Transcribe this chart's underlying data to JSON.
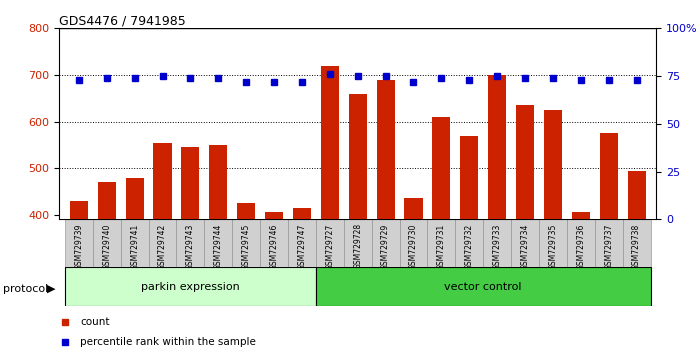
{
  "title": "GDS4476 / 7941985",
  "samples": [
    "GSM729739",
    "GSM729740",
    "GSM729741",
    "GSM729742",
    "GSM729743",
    "GSM729744",
    "GSM729745",
    "GSM729746",
    "GSM729747",
    "GSM729727",
    "GSM729728",
    "GSM729729",
    "GSM729730",
    "GSM729731",
    "GSM729732",
    "GSM729733",
    "GSM729734",
    "GSM729735",
    "GSM729736",
    "GSM729737",
    "GSM729738"
  ],
  "counts": [
    430,
    470,
    480,
    555,
    545,
    550,
    425,
    405,
    415,
    720,
    660,
    690,
    435,
    610,
    570,
    700,
    635,
    625,
    405,
    575,
    495
  ],
  "percentile_ranks": [
    73,
    74,
    74,
    75,
    74,
    74,
    72,
    72,
    72,
    76,
    75,
    75,
    72,
    74,
    73,
    75,
    74,
    74,
    73,
    73,
    73
  ],
  "bar_color": "#cc2200",
  "dot_color": "#0000cc",
  "ylim_left": [
    390,
    800
  ],
  "ylim_right": [
    0,
    100
  ],
  "yticks_left": [
    400,
    500,
    600,
    700,
    800
  ],
  "yticks_right": [
    0,
    25,
    50,
    75,
    100
  ],
  "parkin_count": 9,
  "vector_count": 12,
  "parkin_label": "parkin expression",
  "vector_label": "vector control",
  "protocol_label": "protocol",
  "legend_count_label": "count",
  "legend_pct_label": "percentile rank within the sample",
  "bg_color": "#ffffff",
  "tick_label_color_left": "#cc2200",
  "tick_label_color_right": "#0000cc",
  "parkin_bg": "#ccffcc",
  "vector_bg": "#44cc44",
  "xticklabel_bg": "#d0d0d0"
}
